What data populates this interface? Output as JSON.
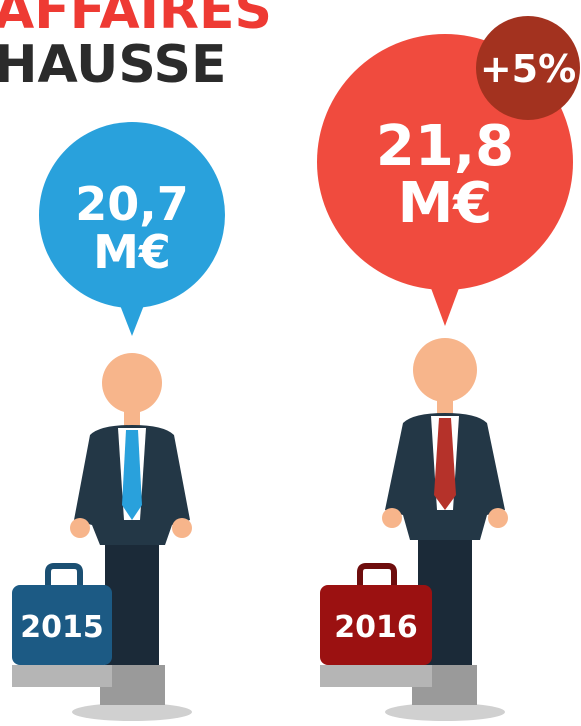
{
  "header": {
    "lines": [
      "AFFAIRES",
      "HAUSSE"
    ]
  },
  "figures": [
    {
      "amount": "20,7",
      "unit": "M€",
      "year": "2015"
    },
    {
      "amount": "21,8",
      "unit": "M€",
      "year": "2016",
      "change": "+5%"
    }
  ]
}
